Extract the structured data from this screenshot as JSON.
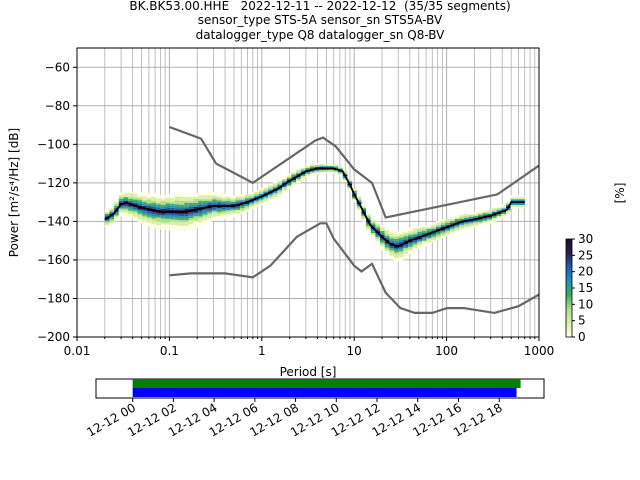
{
  "title_lines": [
    "BK.BK53.00.HHE   2022-12-11 -- 2022-12-12  (35/35 segments)",
    "sensor_type STS-5A sensor_sn STS5A-BV",
    "datalogger_type Q8 datalogger_sn Q8-BV"
  ],
  "chart_data": {
    "type": "heatmap",
    "xlabel": "Period [s]",
    "ylabel": "Power [m²/s⁴/Hz] [dB]",
    "xscale": "log",
    "xlim": [
      0.01,
      1000
    ],
    "ylim": [
      -200,
      -50
    ],
    "xticks": [
      0.01,
      0.1,
      1,
      10,
      100,
      1000
    ],
    "xtick_labels": [
      "0.01",
      "0.1",
      "1",
      "10",
      "100",
      "1000"
    ],
    "yticks": [
      -200,
      -180,
      -160,
      -140,
      -120,
      -100,
      -80,
      -60
    ],
    "ytick_labels": [
      "−200",
      "−180",
      "−160",
      "−140",
      "−120",
      "−100",
      "−80",
      "−60"
    ],
    "grid": true,
    "noise_model_high": [
      [
        0.1,
        -91
      ],
      [
        0.22,
        -97
      ],
      [
        0.32,
        -110
      ],
      [
        0.8,
        -120
      ],
      [
        3.8,
        -98
      ],
      [
        4.6,
        -96.5
      ],
      [
        6.3,
        -101
      ],
      [
        10,
        -113
      ],
      [
        15.6,
        -120
      ],
      [
        21.9,
        -138
      ],
      [
        354.8,
        -126
      ],
      [
        1000,
        -111
      ]
    ],
    "noise_model_low": [
      [
        0.1,
        -168
      ],
      [
        0.17,
        -167
      ],
      [
        0.4,
        -167
      ],
      [
        0.8,
        -169
      ],
      [
        1.24,
        -163
      ],
      [
        2.4,
        -148
      ],
      [
        4.3,
        -141
      ],
      [
        5.0,
        -141
      ],
      [
        6.0,
        -149
      ],
      [
        10,
        -163
      ],
      [
        12,
        -166
      ],
      [
        15.6,
        -162
      ],
      [
        21.9,
        -177
      ],
      [
        31.6,
        -185
      ],
      [
        45,
        -187.5
      ],
      [
        70,
        -187.5
      ],
      [
        101,
        -185
      ],
      [
        154,
        -185
      ],
      [
        328,
        -187.5
      ],
      [
        600,
        -184
      ],
      [
        1000,
        -178
      ]
    ],
    "mean_curve": [
      [
        0.02,
        -139
      ],
      [
        0.025,
        -136
      ],
      [
        0.03,
        -131
      ],
      [
        0.035,
        -130.5
      ],
      [
        0.05,
        -133
      ],
      [
        0.08,
        -135
      ],
      [
        0.15,
        -135
      ],
      [
        0.3,
        -132
      ],
      [
        0.5,
        -132
      ],
      [
        0.7,
        -130
      ],
      [
        1.0,
        -127
      ],
      [
        1.5,
        -123
      ],
      [
        2.0,
        -119
      ],
      [
        3.0,
        -114
      ],
      [
        4.0,
        -112.5
      ],
      [
        6.0,
        -112.5
      ],
      [
        7.5,
        -114
      ],
      [
        9,
        -121
      ],
      [
        10,
        -126
      ],
      [
        12,
        -133
      ],
      [
        15,
        -142
      ],
      [
        20,
        -148
      ],
      [
        25,
        -152
      ],
      [
        30,
        -153
      ],
      [
        40,
        -150
      ],
      [
        60,
        -147
      ],
      [
        100,
        -143
      ],
      [
        150,
        -140
      ],
      [
        200,
        -139
      ],
      [
        300,
        -137
      ],
      [
        450,
        -134
      ],
      [
        500,
        -130
      ],
      [
        700,
        -130
      ]
    ],
    "heat_bands": [
      {
        "x": [
          0.02,
          0.05,
          0.15,
          0.4,
          0.8,
          1.5,
          3,
          6,
          9,
          15,
          30,
          60,
          150,
          450,
          700
        ],
        "center": [
          -139,
          -133,
          -135,
          -132,
          -130,
          -123,
          -114,
          -112.5,
          -121,
          -142,
          -153,
          -147,
          -140,
          -134,
          -130
        ],
        "spread": [
          4,
          8,
          10,
          6,
          4,
          4,
          3,
          2,
          3,
          5,
          8,
          5,
          4,
          3,
          3
        ]
      }
    ],
    "colorbar": {
      "label": "[%]",
      "range": [
        0,
        30
      ],
      "ticks": [
        0,
        5,
        10,
        15,
        20,
        25,
        30
      ],
      "tick_labels": [
        "0",
        "5",
        "10",
        "15",
        "20",
        "25",
        "30"
      ],
      "colormap": [
        "#ffffe5",
        "#d9f0a3",
        "#addd8e",
        "#41ab5d",
        "#1d91c0",
        "#225ea8",
        "#2c1f4f",
        "#1a0a2e"
      ]
    },
    "timeline": {
      "tick_labels": [
        "12-12 00",
        "12-12 02",
        "12-12 04",
        "12-12 06",
        "12-12 08",
        "12-12 10",
        "12-12 12",
        "12-12 14",
        "12-12 16",
        "12-12 18"
      ],
      "tick_hours": [
        0,
        2,
        4,
        6,
        8,
        10,
        12,
        14,
        16,
        18
      ],
      "range_hours": [
        -1.8,
        20.2
      ],
      "bars": [
        {
          "color": "#008000",
          "start_hours": 0.0,
          "end_hours": 19.05
        },
        {
          "color": "#0000ff",
          "start_hours": 0.0,
          "end_hours": 18.85
        }
      ]
    }
  }
}
